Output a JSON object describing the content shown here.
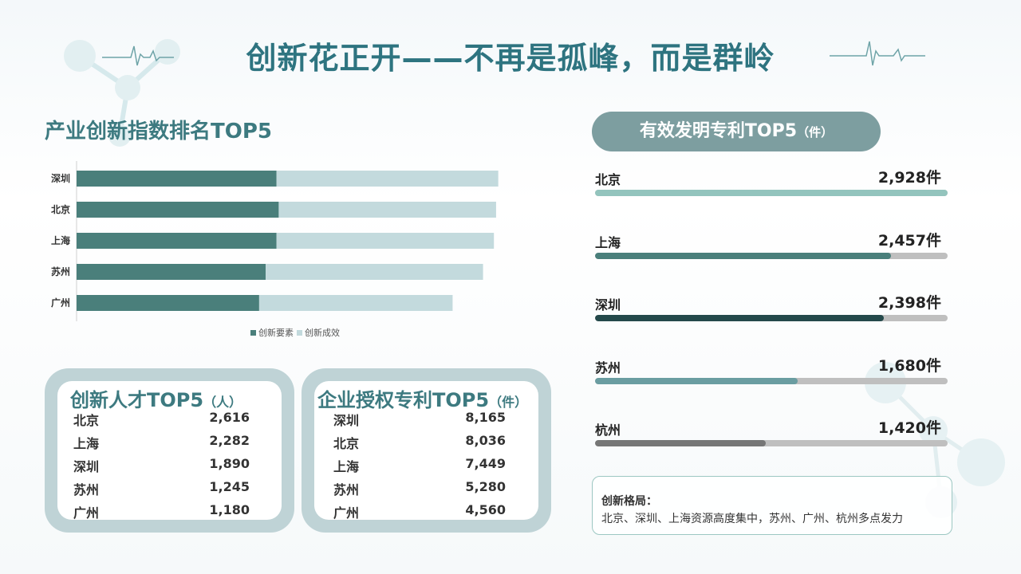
{
  "title": "创新花正开——不再是孤峰，而是群岭",
  "colors": {
    "primary": "#4a7f7b",
    "light": "#c3dadd",
    "accent": "#2e7480"
  },
  "index_section": {
    "title": "产业创新指数排名TOP5"
  },
  "chart_data": {
    "type": "bar",
    "orientation": "horizontal",
    "stacked": true,
    "categories": [
      "深圳",
      "北京",
      "上海",
      "苏州",
      "广州"
    ],
    "series": [
      {
        "name": "创新要素",
        "values": [
          46,
          46.5,
          46,
          43.5,
          42
        ],
        "color": "#4a7f7b"
      },
      {
        "name": "创新成效",
        "values": [
          51,
          50,
          50,
          50,
          44.5
        ],
        "color": "#c3dadd"
      }
    ],
    "xlim": [
      0,
      100
    ],
    "legend_position": "bottom"
  },
  "patents": {
    "title": "有效发明专利TOP5",
    "unit_note": "（件）",
    "max": 2928,
    "rows": [
      {
        "city": "北京",
        "value": "2,928件",
        "num": 2928,
        "color": "#93c4bd"
      },
      {
        "city": "上海",
        "value": "2,457件",
        "num": 2457,
        "color": "#4a7f7b"
      },
      {
        "city": "深圳",
        "value": "2,398件",
        "num": 2398,
        "color": "#24494b"
      },
      {
        "city": "苏州",
        "value": "1,680件",
        "num": 1680,
        "color": "#6a9da1"
      },
      {
        "city": "杭州",
        "value": "1,420件",
        "num": 1420,
        "color": "#767676"
      }
    ]
  },
  "talent": {
    "title": "创新人才TOP5",
    "unit_note": "（人）",
    "rows": [
      {
        "city": "北京",
        "value": "2,616"
      },
      {
        "city": "上海",
        "value": "2,282"
      },
      {
        "city": "深圳",
        "value": "1,890"
      },
      {
        "city": "苏州",
        "value": "1,245"
      },
      {
        "city": "广州",
        "value": "1,180"
      }
    ]
  },
  "enterprise": {
    "title": "企业授权专利TOP5",
    "unit_note": "（件）",
    "rows": [
      {
        "city": "深圳",
        "value": "8,165"
      },
      {
        "city": "北京",
        "value": "8,036"
      },
      {
        "city": "上海",
        "value": "7,449"
      },
      {
        "city": "苏州",
        "value": "5,280"
      },
      {
        "city": "广州",
        "value": "4,560"
      }
    ]
  },
  "note": {
    "heading": "创新格局：",
    "body": "北京、深圳、上海资源高度集中，苏州、广州、杭州多点发力"
  }
}
